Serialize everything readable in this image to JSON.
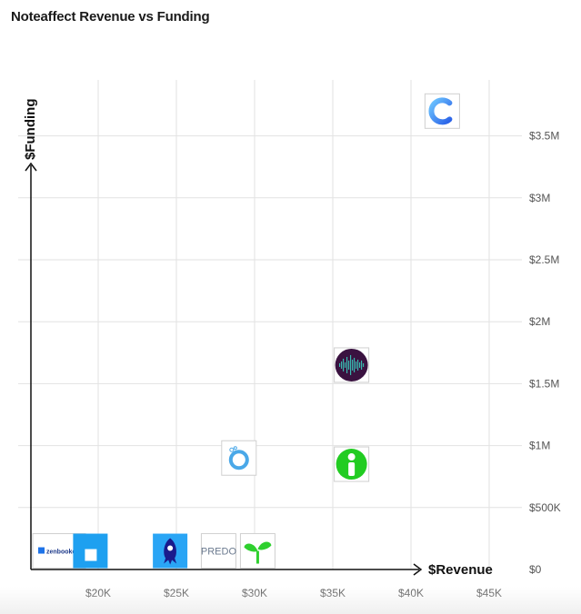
{
  "title": "Noteaffect Revenue vs Funding",
  "chart_data": {
    "type": "scatter",
    "title": "Noteaffect Revenue vs Funding",
    "xlabel": "$Revenue",
    "ylabel": "$Funding",
    "xlim": [
      15000,
      46000
    ],
    "ylim": [
      0,
      3950000
    ],
    "x_ticks": [
      20000,
      25000,
      30000,
      35000,
      40000,
      45000
    ],
    "x_tick_labels": [
      "$20K",
      "$25K",
      "$30K",
      "$35K",
      "$40K",
      "$45K"
    ],
    "y_ticks": [
      0,
      500000,
      1000000,
      1500000,
      2000000,
      2500000,
      3000000,
      3500000
    ],
    "y_tick_labels": [
      "$0",
      "$500K",
      "$1M",
      "$1.5M",
      "$2M",
      "$2.5M",
      "$3M",
      "$3.5M"
    ],
    "y_axis_position": "right",
    "grid": true,
    "points": [
      {
        "x": 17500,
        "y": 150000,
        "icon": "zenbooker-logo",
        "label": "zenbooker",
        "color": "#1e73e8"
      },
      {
        "x": 19500,
        "y": 150000,
        "icon": "blue-square-logo",
        "color": "#1ea0f0"
      },
      {
        "x": 24600,
        "y": 150000,
        "icon": "squid-logo",
        "color": "#2aa5f5"
      },
      {
        "x": 27700,
        "y": 150000,
        "icon": "predo-logo",
        "label": "PREDO",
        "color": "#6b7a8f"
      },
      {
        "x": 30200,
        "y": 150000,
        "icon": "sprout-logo",
        "color": "#2fd02f"
      },
      {
        "x": 29000,
        "y": 900000,
        "icon": "ring-logo",
        "color": "#4aa8e8"
      },
      {
        "x": 36200,
        "y": 850000,
        "icon": "green-i-logo",
        "color": "#22cc22"
      },
      {
        "x": 36200,
        "y": 1650000,
        "icon": "waveform-logo",
        "color": "#3a1240"
      },
      {
        "x": 42000,
        "y": 3700000,
        "icon": "c-logo",
        "color": "#3b8df0"
      }
    ]
  }
}
